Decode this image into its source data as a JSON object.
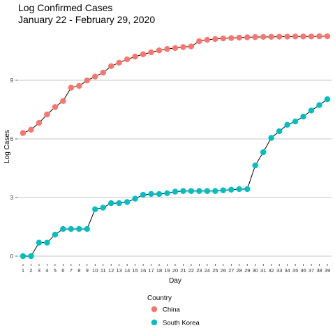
{
  "chart_data": {
    "type": "line",
    "title": "Log Confirmed Cases",
    "subtitle": "January 22 - February 29, 2020",
    "xlabel": "Day",
    "ylabel": "Log Cases",
    "x": [
      1,
      2,
      3,
      4,
      5,
      6,
      7,
      8,
      9,
      10,
      11,
      12,
      13,
      14,
      15,
      16,
      17,
      18,
      19,
      20,
      21,
      22,
      23,
      24,
      25,
      26,
      27,
      28,
      29,
      30,
      31,
      32,
      33,
      34,
      35,
      36,
      37,
      38,
      39
    ],
    "xlim": [
      1,
      39
    ],
    "ylim": [
      0,
      12
    ],
    "yticks": [
      0,
      3,
      6,
      9
    ],
    "grid": true,
    "legend": {
      "title": "Country",
      "position": "bottom"
    },
    "series": [
      {
        "name": "China",
        "color": "#F8766D",
        "values": [
          6.3,
          6.47,
          6.82,
          7.25,
          7.63,
          7.94,
          8.62,
          8.71,
          8.99,
          9.19,
          9.39,
          9.72,
          9.9,
          10.07,
          10.21,
          10.33,
          10.43,
          10.53,
          10.6,
          10.65,
          10.7,
          10.73,
          11.0,
          11.07,
          11.11,
          11.14,
          11.16,
          11.18,
          11.2,
          11.21,
          11.22,
          11.22,
          11.23,
          11.23,
          11.24,
          11.24,
          11.24,
          11.25,
          11.25
        ]
      },
      {
        "name": "South Korea",
        "color": "#00BFC4",
        "values": [
          0,
          0,
          0.69,
          0.69,
          1.1,
          1.39,
          1.39,
          1.39,
          1.39,
          2.4,
          2.48,
          2.71,
          2.71,
          2.77,
          2.94,
          3.14,
          3.18,
          3.18,
          3.22,
          3.3,
          3.33,
          3.33,
          3.33,
          3.33,
          3.33,
          3.37,
          3.4,
          3.43,
          3.43,
          4.64,
          5.32,
          6.05,
          6.39,
          6.72,
          6.89,
          7.14,
          7.45,
          7.73,
          8.03
        ]
      }
    ]
  }
}
